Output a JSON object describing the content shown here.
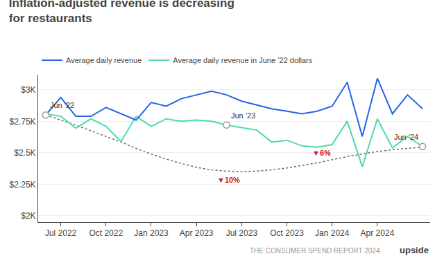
{
  "chart_data": {
    "type": "line",
    "title": "Inflation-adjusted revenue is decreasing\nfor restaurants",
    "categories": [
      null,
      "Jul 2022",
      null,
      null,
      "Oct 2022",
      null,
      null,
      "Jan 2023",
      null,
      null,
      "Apr 2023",
      null,
      null,
      "Jul 2023",
      null,
      null,
      "Oct 2023",
      null,
      null,
      "Jan 2024",
      null,
      null,
      "Apr 2024",
      null,
      null,
      null
    ],
    "series": [
      {
        "name": "Average daily revenue",
        "color": "#2563eb",
        "values": [
          2800,
          2940,
          2790,
          2790,
          2860,
          2810,
          2760,
          2900,
          2870,
          2930,
          2960,
          2990,
          2960,
          2910,
          2880,
          2850,
          2830,
          2810,
          2830,
          2870,
          3060,
          2630,
          3090,
          2810,
          2960,
          2850
        ]
      },
      {
        "name": "Average daily revenue in June ’22 dollars",
        "color": "#4dd9ac",
        "values": [
          2810,
          2790,
          2695,
          2770,
          2710,
          2590,
          2790,
          2710,
          2770,
          2750,
          2760,
          2750,
          2720,
          2700,
          2680,
          2585,
          2600,
          2555,
          2545,
          2565,
          2750,
          2390,
          2770,
          2540,
          2630,
          2550
        ]
      },
      {
        "color": "#666666",
        "line_style": "dotted",
        "values": [
          2800,
          2760,
          2720,
          2675,
          2630,
          2585,
          2535,
          2490,
          2450,
          2415,
          2385,
          2365,
          2355,
          2350,
          2355,
          2365,
          2380,
          2400,
          2420,
          2445,
          2470,
          2490,
          2510,
          2525,
          2535,
          2545
        ]
      }
    ],
    "ylim": [
      1950,
      3120
    ],
    "yticks": [
      {
        "value": 2000,
        "label": "$2K"
      },
      {
        "value": 2250,
        "label": "$2.25K"
      },
      {
        "value": 2500,
        "label": "$2.5K"
      },
      {
        "value": 2750,
        "label": "$2.75K"
      },
      {
        "value": 3000,
        "label": "$3K"
      }
    ],
    "grid": true,
    "legend": "upper left",
    "annotations": [
      {
        "text": "Jun '22",
        "x": 0,
        "y": 2800,
        "marker": "circle"
      },
      {
        "text": "Jun '23",
        "x": 12,
        "y": 2720,
        "marker": "circle"
      },
      {
        "text": "Jun '24",
        "x": 25,
        "y": 2550,
        "marker": "circle"
      },
      {
        "text": "▼10%",
        "x": 13,
        "y": 2350,
        "color": "#cc2222"
      },
      {
        "text": "▼6%",
        "x": 19,
        "y": 2565,
        "color": "#cc2222"
      }
    ],
    "footer": "THE CONSUMER SPEND REPORT 2024",
    "logo": "upside"
  }
}
